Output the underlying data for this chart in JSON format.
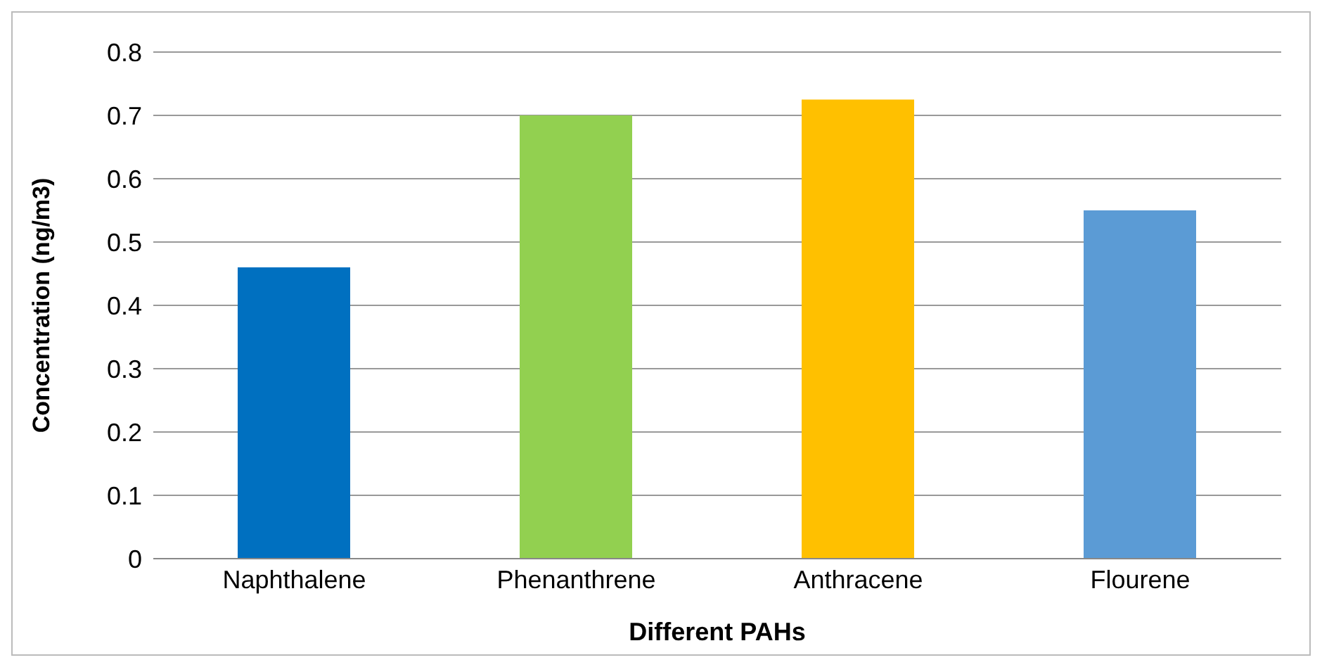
{
  "chart_data": {
    "type": "bar",
    "xlabel": "Different PAHs",
    "ylabel": "Concentration (ng/m3)",
    "categories": [
      "Naphthalene",
      "Phenanthrene",
      "Anthracene",
      "Flourene"
    ],
    "values": [
      0.46,
      0.7,
      0.725,
      0.55
    ],
    "colors": [
      "#0070c0",
      "#92d050",
      "#ffc000",
      "#5b9bd5"
    ],
    "ylim": [
      0,
      0.8
    ],
    "yticks": [
      0,
      0.1,
      0.2,
      0.3,
      0.4,
      0.5,
      0.6,
      0.7,
      0.8
    ],
    "grid": "y"
  }
}
